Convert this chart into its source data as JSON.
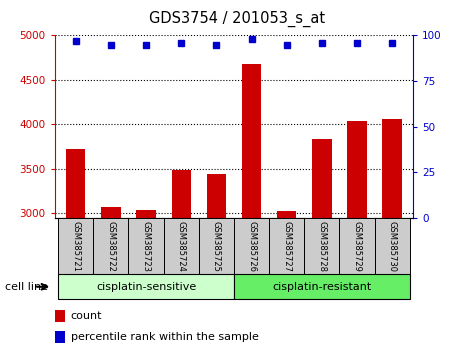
{
  "title": "GDS3754 / 201053_s_at",
  "samples": [
    "GSM385721",
    "GSM385722",
    "GSM385723",
    "GSM385724",
    "GSM385725",
    "GSM385726",
    "GSM385727",
    "GSM385728",
    "GSM385729",
    "GSM385730"
  ],
  "counts": [
    3720,
    3070,
    3040,
    3490,
    3440,
    4680,
    3030,
    3840,
    4040,
    4060
  ],
  "percentile_ranks": [
    97,
    95,
    95,
    96,
    95,
    98,
    95,
    96,
    96,
    96
  ],
  "ylim_left": [
    2950,
    5000
  ],
  "ylim_right": [
    0,
    100
  ],
  "yticks_left": [
    3000,
    3500,
    4000,
    4500,
    5000
  ],
  "yticks_right": [
    0,
    25,
    50,
    75,
    100
  ],
  "group1_label": "cisplatin-sensitive",
  "group2_label": "cisplatin-resistant",
  "group1_indices": [
    0,
    1,
    2,
    3,
    4
  ],
  "group2_indices": [
    5,
    6,
    7,
    8,
    9
  ],
  "bar_color": "#cc0000",
  "dot_color": "#0000cc",
  "group1_bg": "#ccffcc",
  "group2_bg": "#66ee66",
  "sample_bg": "#cccccc",
  "legend_count_color": "#cc0000",
  "legend_dot_color": "#0000cc",
  "cell_line_label": "cell line",
  "legend_count_label": "count",
  "legend_pct_label": "percentile rank within the sample"
}
